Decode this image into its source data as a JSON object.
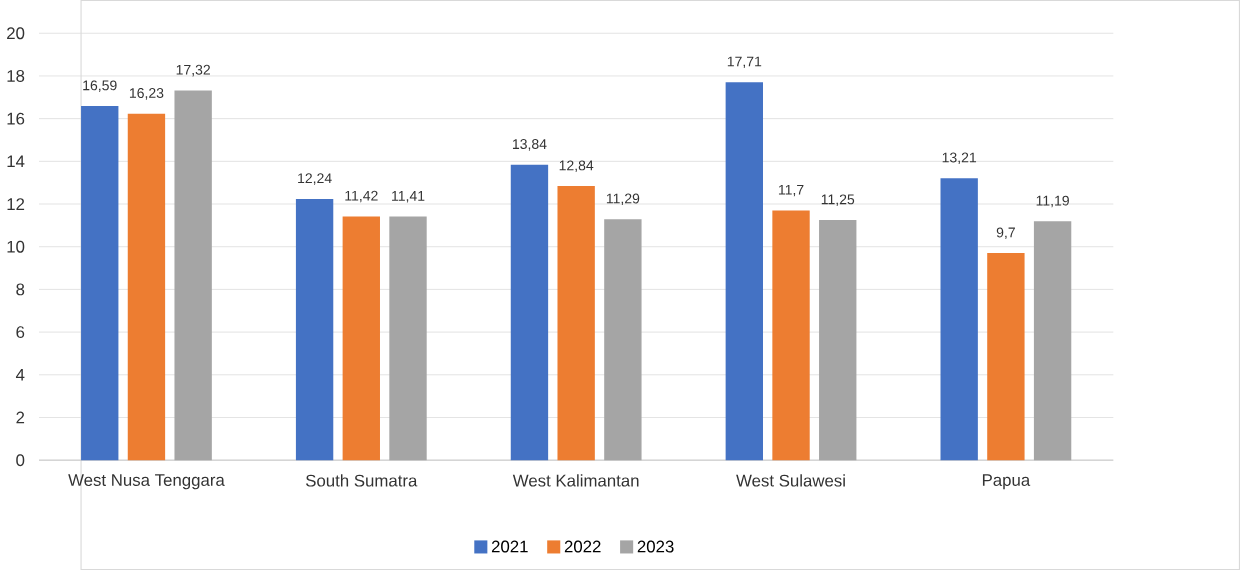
{
  "chart_data": {
    "type": "bar",
    "categories": [
      "West Nusa Tenggara",
      "South Sumatra",
      "West Kalimantan",
      "West Sulawesi",
      "Papua"
    ],
    "series": [
      {
        "name": "2021",
        "color": "#4472c4",
        "values": [
          16.59,
          12.24,
          13.84,
          17.71,
          13.21
        ],
        "value_labels": [
          "16,59",
          "12,24",
          "13,84",
          "17,71",
          "13,21"
        ]
      },
      {
        "name": "2022",
        "color": "#ed7d31",
        "values": [
          16.23,
          11.42,
          12.84,
          11.7,
          9.7
        ],
        "value_labels": [
          "16,23",
          "11,42",
          "12,84",
          "11,7",
          "9,7"
        ]
      },
      {
        "name": "2023",
        "color": "#a5a5a5",
        "values": [
          17.32,
          11.41,
          11.29,
          11.25,
          11.19
        ],
        "value_labels": [
          "17,32",
          "11,41",
          "11,29",
          "11,25",
          "11,19"
        ]
      }
    ],
    "ylim": [
      0,
      20
    ],
    "yticks": [
      0,
      2,
      4,
      6,
      8,
      10,
      12,
      14,
      16,
      18,
      20
    ],
    "grid": "y",
    "legend": "bottom"
  }
}
